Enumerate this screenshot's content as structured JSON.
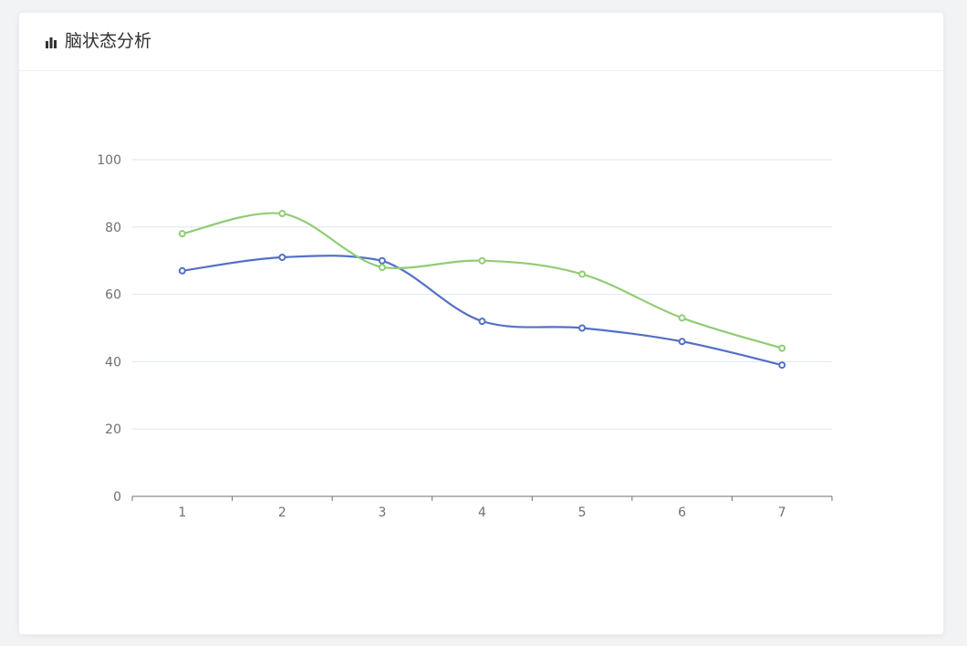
{
  "card": {
    "title": "脑状态分析",
    "title_icon": "bar-chart-icon"
  },
  "chart_data": {
    "type": "line",
    "smooth": true,
    "x": [
      "1",
      "2",
      "3",
      "4",
      "5",
      "6",
      "7"
    ],
    "series": [
      {
        "color": "#5470c6",
        "values": [
          67,
          71,
          70,
          52,
          50,
          46,
          39
        ]
      },
      {
        "color": "#91cc75",
        "values": [
          78,
          84,
          68,
          70,
          66,
          53,
          44
        ]
      }
    ],
    "ylim": [
      0,
      100
    ],
    "yticks": [
      0,
      20,
      40,
      60,
      80,
      100
    ],
    "grid": true,
    "legend": "none"
  }
}
